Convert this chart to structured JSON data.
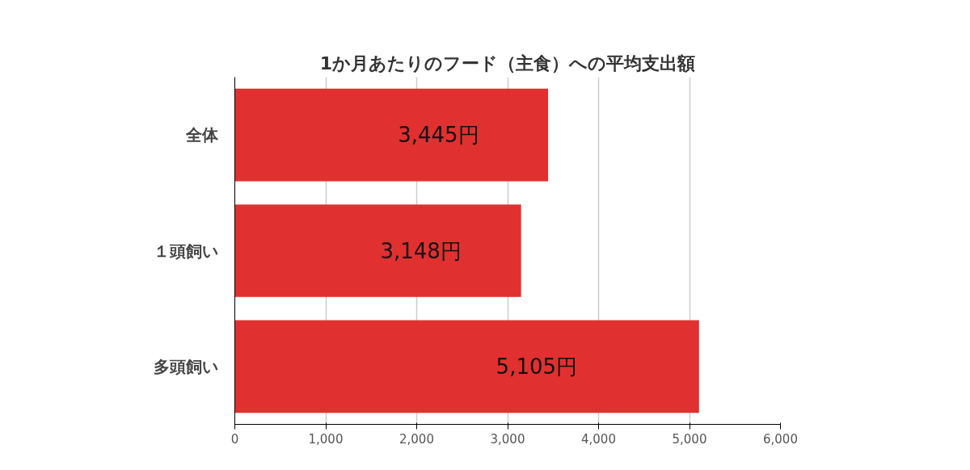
{
  "chart_data": {
    "type": "bar",
    "orientation": "horizontal",
    "title": "1か月あたりのフード（主食）への平均支出額",
    "categories": [
      "全体",
      "１頭飼い",
      "多頭飼い"
    ],
    "values": [
      3445,
      3148,
      5105
    ],
    "color": "#e03130",
    "value_labels": [
      "3,445円",
      "3,148円",
      "5,105円"
    ],
    "xlim": [
      0,
      6000
    ],
    "xticks": [
      0,
      {
        "value": 1000,
        "label": "1,000"
      },
      {
        "value": 2000,
        "label": "2,000"
      },
      {
        "value": 3000,
        "label": "3,000"
      },
      {
        "value": 4000,
        "label": "4,000"
      },
      {
        "value": 5000,
        "label": "5,000"
      },
      {
        "value": 6000,
        "label": "6,000"
      }
    ],
    "grid": "x"
  }
}
